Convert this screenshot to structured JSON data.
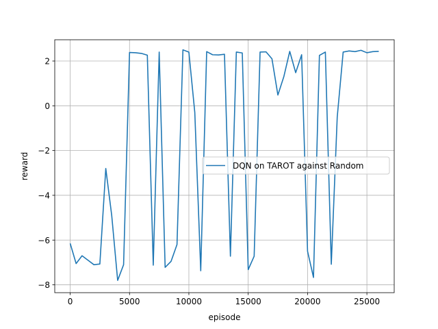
{
  "chart_data": {
    "type": "line",
    "title": "",
    "xlabel": "episode",
    "ylabel": "reward",
    "xlim": [
      -1300,
      27300
    ],
    "ylim": [
      -8.35,
      2.95
    ],
    "xticks": [
      0,
      5000,
      10000,
      15000,
      20000,
      25000
    ],
    "yticks": [
      -8,
      -6,
      -4,
      -2,
      0,
      2
    ],
    "grid": true,
    "legend_position": "center-right",
    "series": [
      {
        "name": "DQN on TAROT against Random",
        "color": "#1f77b4",
        "x": [
          0,
          500,
          1000,
          1500,
          2000,
          2500,
          3000,
          3500,
          4000,
          4500,
          5000,
          5500,
          6000,
          6500,
          7000,
          7500,
          8000,
          8500,
          9000,
          9500,
          10000,
          10500,
          11000,
          11500,
          12000,
          12500,
          13000,
          13500,
          14000,
          14500,
          15000,
          15500,
          16000,
          16500,
          17000,
          17500,
          18000,
          18500,
          19000,
          19500,
          20000,
          20500,
          21000,
          21500,
          22000,
          22500,
          23000,
          23500,
          24000,
          24500,
          25000,
          25500,
          26000
        ],
        "y": [
          -6.15,
          -7.05,
          -6.7,
          -6.9,
          -7.1,
          -7.07,
          -2.8,
          -4.9,
          -7.8,
          -7.1,
          2.38,
          2.37,
          2.34,
          2.26,
          -7.12,
          2.4,
          -7.22,
          -6.95,
          -6.2,
          2.5,
          2.4,
          -0.3,
          -7.37,
          2.42,
          2.28,
          2.27,
          2.3,
          -6.72,
          2.4,
          2.36,
          -7.32,
          -6.72,
          2.4,
          2.41,
          2.1,
          0.48,
          1.3,
          2.43,
          1.48,
          2.28,
          -6.5,
          -7.67,
          2.25,
          2.4,
          -7.08,
          -0.5,
          2.4,
          2.45,
          2.42,
          2.48,
          2.37,
          2.42,
          2.43
        ]
      }
    ]
  }
}
